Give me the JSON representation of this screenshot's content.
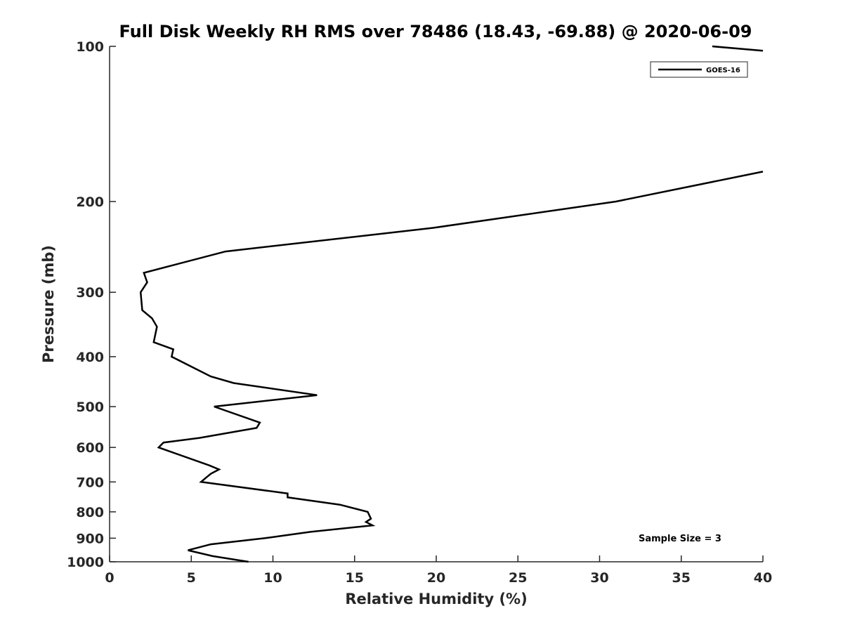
{
  "chart_data": {
    "type": "line",
    "title": "Full Disk Weekly RH RMS over 78486 (18.43, -69.88) @ 2020-06-09",
    "xlabel": "Relative Humidity (%)",
    "ylabel": "Pressure (mb)",
    "xlim": [
      0,
      40
    ],
    "ylim": [
      1000,
      100
    ],
    "y_scale": "log",
    "grid": false,
    "legend_position": "top-right",
    "x_ticks": [
      "0",
      "5",
      "10",
      "15",
      "20",
      "25",
      "30",
      "35",
      "40"
    ],
    "y_ticks": [
      "100",
      "200",
      "300",
      "400",
      "500",
      "600",
      "700",
      "800",
      "900",
      "1000"
    ],
    "annotation": "Sample Size = 3",
    "series": [
      {
        "name": "GOES-16",
        "color": "#000000",
        "points": [
          [
            8.5,
            1000
          ],
          [
            6.3,
            975
          ],
          [
            4.8,
            950
          ],
          [
            6.2,
            925
          ],
          [
            9.5,
            900
          ],
          [
            12.3,
            875
          ],
          [
            16.1,
            850
          ],
          [
            15.7,
            837
          ],
          [
            16.0,
            825
          ],
          [
            15.8,
            800
          ],
          [
            14.1,
            775
          ],
          [
            10.9,
            750
          ],
          [
            10.9,
            737
          ],
          [
            5.6,
            700
          ],
          [
            5.9,
            687
          ],
          [
            6.2,
            675
          ],
          [
            6.7,
            662
          ],
          [
            6.1,
            650
          ],
          [
            3.0,
            600
          ],
          [
            3.3,
            587
          ],
          [
            5.5,
            575
          ],
          [
            9.0,
            550
          ],
          [
            9.2,
            537
          ],
          [
            6.4,
            500
          ],
          [
            12.7,
            475
          ],
          [
            7.6,
            450
          ],
          [
            6.2,
            437
          ],
          [
            3.8,
            400
          ],
          [
            3.9,
            387
          ],
          [
            2.7,
            375
          ],
          [
            2.9,
            350
          ],
          [
            2.6,
            337
          ],
          [
            2.0,
            325
          ],
          [
            1.9,
            300
          ],
          [
            2.3,
            287
          ],
          [
            2.1,
            275
          ],
          [
            7.1,
            250
          ],
          [
            19.8,
            225
          ],
          [
            31.0,
            200
          ],
          [
            40.0,
            175
          ]
        ],
        "top_segment": [
          [
            36.9,
            100
          ],
          [
            40.0,
            102
          ]
        ]
      }
    ]
  }
}
